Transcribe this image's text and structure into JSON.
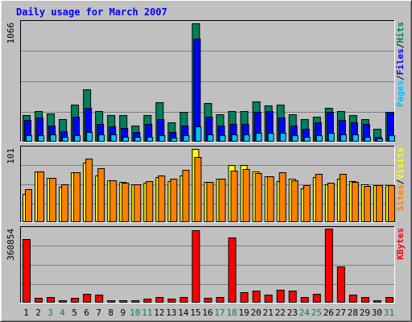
{
  "chart_data": {
    "type": "bar",
    "title": "Daily usage for March 2007",
    "days": [
      "1",
      "2",
      "3",
      "4",
      "5",
      "6",
      "7",
      "8",
      "9",
      "10",
      "11",
      "12",
      "13",
      "14",
      "15",
      "16",
      "17",
      "18",
      "19",
      "20",
      "21",
      "22",
      "23",
      "24",
      "25",
      "26",
      "27",
      "28",
      "29",
      "30",
      "31"
    ],
    "weekend_days": [
      "3",
      "4",
      "10",
      "11",
      "17",
      "18",
      "24",
      "25",
      "31"
    ],
    "panels": [
      {
        "id": "hits",
        "max_label": "1066",
        "ymax": 1066,
        "series": [
          {
            "name": "Hits",
            "color": "#00805c",
            "values": [
              230,
              270,
              250,
              200,
              330,
              470,
              270,
              230,
              230,
              140,
              230,
              350,
              170,
              260,
              1066,
              340,
              240,
              270,
              270,
              360,
              320,
              330,
              240,
              200,
              220,
              300,
              270,
              230,
              200,
              110,
              260
            ]
          },
          {
            "name": "Files",
            "color": "#0000ff",
            "values": [
              190,
              210,
              140,
              90,
              220,
              300,
              150,
              130,
              120,
              80,
              150,
              200,
              80,
              140,
              930,
              220,
              140,
              150,
              150,
              260,
              270,
              210,
              140,
              110,
              170,
              260,
              190,
              170,
              150,
              40,
              260
            ]
          },
          {
            "name": "Pages",
            "color": "#00c0ff",
            "values": [
              50,
              50,
              60,
              40,
              50,
              80,
              60,
              60,
              40,
              35,
              40,
              50,
              30,
              50,
              130,
              60,
              50,
              60,
              60,
              70,
              70,
              70,
              50,
              40,
              50,
              70,
              60,
              60,
              40,
              20,
              50
            ]
          }
        ]
      },
      {
        "id": "visits",
        "max_label": "101",
        "ymax": 101,
        "series": [
          {
            "name": "Visits",
            "color": "#ffff00",
            "values": [
              38,
              70,
              61,
              48,
              68,
              82,
              64,
              57,
              55,
              52,
              54,
              62,
              56,
              64,
              101,
              55,
              59,
              78,
              79,
              70,
              63,
              56,
              60,
              46,
              62,
              52,
              60,
              56,
              52,
              51,
              51
            ]
          },
          {
            "name": "Sites",
            "color": "#ff8000",
            "values": [
              45,
              70,
              61,
              52,
              68,
              88,
              74,
              57,
              54,
              52,
              56,
              64,
              59,
              72,
              90,
              55,
              59,
              71,
              73,
              67,
              63,
              68,
              57,
              50,
              66,
              54,
              66,
              55,
              49,
              50,
              50
            ]
          }
        ]
      },
      {
        "id": "kbytes",
        "max_label": "360854",
        "ymax": 360854,
        "series": [
          {
            "name": "KBytes",
            "color": "#ff0000",
            "values": [
              312000,
              20000,
              25000,
              8000,
              20000,
              40000,
              35000,
              10000,
              10000,
              10000,
              15000,
              25000,
              15000,
              25000,
              355000,
              20000,
              25000,
              320000,
              50000,
              55000,
              35000,
              60000,
              55000,
              25000,
              40000,
              365000,
              175000,
              35000,
              25000,
              8000,
              25000
            ]
          }
        ]
      }
    ],
    "right_labels": [
      {
        "panel": "hits",
        "parts": [
          {
            "text": "Pages",
            "color": "#00c0ff"
          },
          {
            "text": "/",
            "color": "#000000"
          },
          {
            "text": "Files",
            "color": "#0000ff"
          },
          {
            "text": "/",
            "color": "#000000"
          },
          {
            "text": "Hits",
            "color": "#00805c"
          }
        ]
      },
      {
        "panel": "visits",
        "parts": [
          {
            "text": "Sites",
            "color": "#ff8000"
          },
          {
            "text": "/",
            "color": "#000000"
          },
          {
            "text": "Visits",
            "color": "#ffff00"
          }
        ]
      },
      {
        "panel": "kbytes",
        "parts": [
          {
            "text": "KBytes",
            "color": "#ff0000"
          }
        ]
      }
    ],
    "colors": {
      "title": "#0000ff",
      "background": "#c0c0c0",
      "plot_background": "#c0c0c0",
      "weekday_label": "#000000",
      "weekend_label": "#00805c",
      "gridline": "#808080"
    },
    "grid": true,
    "legend": "right-vertical"
  }
}
